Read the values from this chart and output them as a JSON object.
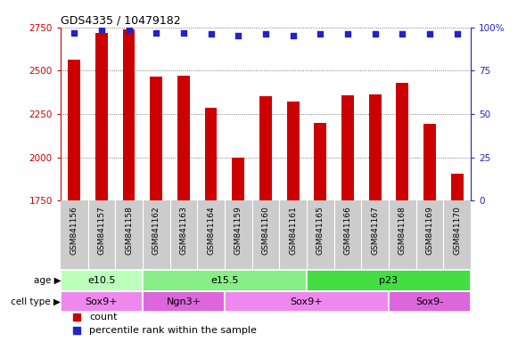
{
  "title": "GDS4335 / 10479182",
  "samples": [
    "GSM841156",
    "GSM841157",
    "GSM841158",
    "GSM841162",
    "GSM841163",
    "GSM841164",
    "GSM841159",
    "GSM841160",
    "GSM841161",
    "GSM841165",
    "GSM841166",
    "GSM841167",
    "GSM841168",
    "GSM841169",
    "GSM841170"
  ],
  "counts": [
    2565,
    2720,
    2740,
    2465,
    2470,
    2285,
    2000,
    2355,
    2320,
    2200,
    2360,
    2365,
    2430,
    2195,
    1905
  ],
  "percentile_ranks": [
    97,
    99,
    99,
    97,
    97,
    96,
    95,
    96,
    95,
    96,
    96,
    96,
    96,
    96,
    96
  ],
  "ylim_left": [
    1750,
    2750
  ],
  "ylim_right": [
    0,
    100
  ],
  "yticks_left": [
    1750,
    2000,
    2250,
    2500,
    2750
  ],
  "yticks_right": [
    0,
    25,
    50,
    75,
    100
  ],
  "bar_color": "#cc0000",
  "dot_color": "#2222cc",
  "age_groups": [
    {
      "label": "e10.5",
      "start": 0,
      "end": 3,
      "color": "#bbffbb"
    },
    {
      "label": "e15.5",
      "start": 3,
      "end": 9,
      "color": "#88ee88"
    },
    {
      "label": "p23",
      "start": 9,
      "end": 15,
      "color": "#44dd44"
    }
  ],
  "cell_type_groups": [
    {
      "label": "Sox9+",
      "start": 0,
      "end": 3,
      "color": "#ee88ee"
    },
    {
      "label": "Ngn3+",
      "start": 3,
      "end": 6,
      "color": "#dd66dd"
    },
    {
      "label": "Sox9+",
      "start": 6,
      "end": 12,
      "color": "#ee88ee"
    },
    {
      "label": "Sox9-",
      "start": 12,
      "end": 15,
      "color": "#dd66dd"
    }
  ],
  "tick_color_left": "#cc0000",
  "tick_color_right": "#2222cc",
  "label_age": "age",
  "label_cell_type": "cell type",
  "legend_count": "count",
  "legend_percentile": "percentile rank within the sample",
  "bg_xtick": "#cccccc",
  "plot_bg": "#ffffff"
}
